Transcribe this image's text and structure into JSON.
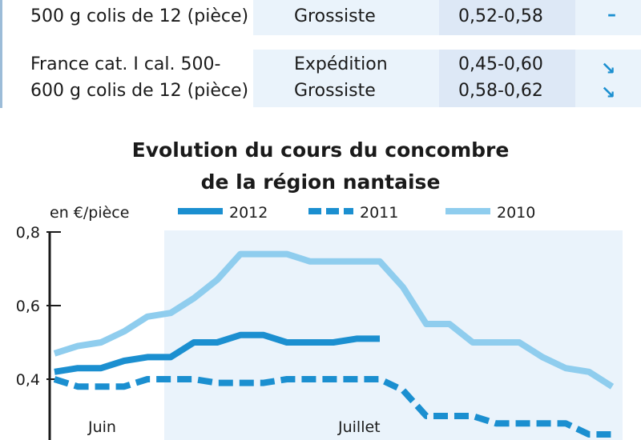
{
  "table": {
    "rows": [
      {
        "product_lines": [
          "500 g colis de 12 (pièce)"
        ],
        "stages": [
          "Grossiste"
        ],
        "prices": [
          "0,52-0,58"
        ],
        "trends": [
          "stable"
        ]
      },
      {
        "product_lines": [
          "France cat. I cal. 500-",
          "600 g colis de 12 (pièce)"
        ],
        "stages": [
          "Expédition",
          "Grossiste"
        ],
        "prices": [
          "0,45-0,60",
          "0,58-0,62"
        ],
        "trends": [
          "down",
          "down"
        ]
      }
    ]
  },
  "chart_data": {
    "type": "line",
    "title": "Evolution du cours du concombre de la région nantaise",
    "title_lines": [
      "Evolution du cours du concombre",
      "de la région nantaise"
    ],
    "unit_label": "en €/pièce",
    "ylim": [
      0.2,
      0.8
    ],
    "yticks": [
      0.8,
      0.6,
      0.4
    ],
    "ytick_labels": [
      "0,8",
      "0,6",
      "0,4"
    ],
    "period_labels": [
      "Juin",
      "Juillet"
    ],
    "series": [
      {
        "name": "2012",
        "style": "solid",
        "color": "#1b8fd0",
        "values": [
          0.42,
          0.43,
          0.43,
          0.45,
          0.46,
          0.46,
          0.5,
          0.5,
          0.52,
          0.52,
          0.5,
          0.5,
          0.5,
          0.51,
          0.51
        ]
      },
      {
        "name": "2011",
        "style": "dashed",
        "color": "#1b8fd0",
        "values": [
          0.4,
          0.38,
          0.38,
          0.38,
          0.4,
          0.4,
          0.4,
          0.39,
          0.39,
          0.39,
          0.4,
          0.4,
          0.4,
          0.4,
          0.4,
          0.37,
          0.3,
          0.3,
          0.3,
          0.28,
          0.28,
          0.28,
          0.28,
          0.25,
          0.25
        ]
      },
      {
        "name": "2010",
        "style": "solid",
        "color": "#8fcdee",
        "values": [
          0.47,
          0.49,
          0.5,
          0.53,
          0.57,
          0.58,
          0.62,
          0.67,
          0.74,
          0.74,
          0.74,
          0.72,
          0.72,
          0.72,
          0.72,
          0.65,
          0.55,
          0.55,
          0.5,
          0.5,
          0.5,
          0.46,
          0.43,
          0.42,
          0.38
        ]
      }
    ],
    "colors": {
      "accent": "#1b8fd0",
      "light": "#8fcdee",
      "band": "#eaf3fb"
    }
  }
}
